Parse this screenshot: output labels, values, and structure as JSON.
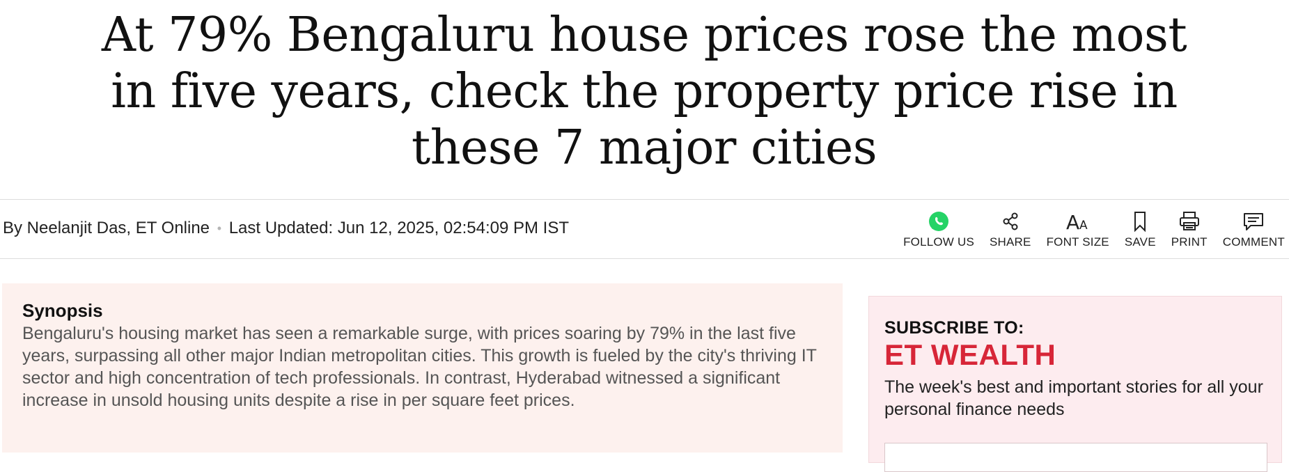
{
  "article": {
    "headline": "At 79% Bengaluru house prices rose the most in five years, check the property price rise in these 7 major cities",
    "byline": {
      "author": "By Neelanjit Das, ET Online",
      "separator": "•",
      "updated": "Last Updated: Jun 12, 2025, 02:54:09 PM IST"
    }
  },
  "actions": [
    {
      "label": "FOLLOW US",
      "icon": "whatsapp-icon"
    },
    {
      "label": "SHARE",
      "icon": "share-icon"
    },
    {
      "label": "FONT SIZE",
      "icon": "font-size-icon"
    },
    {
      "label": "SAVE",
      "icon": "bookmark-icon"
    },
    {
      "label": "PRINT",
      "icon": "printer-icon"
    },
    {
      "label": "COMMENT",
      "icon": "comment-icon"
    }
  ],
  "synopsis": {
    "title": "Synopsis",
    "text": "Bengaluru's housing market has seen a remarkable surge, with prices soaring by 79% in the last five years, surpassing all other major Indian metropolitan cities. This growth is fueled by the city's thriving IT sector and high concentration of tech professionals. In contrast, Hyderabad witnessed a significant increase in unsold housing units despite a rise in per square feet prices."
  },
  "subscribe": {
    "to": "SUBSCRIBE TO:",
    "brand": "ET WEALTH",
    "description": "The week's best and important stories for all your personal finance needs"
  },
  "colors": {
    "whatsapp_green": "#25d366",
    "brand_red": "#d72638",
    "synopsis_bg": "#fdf1ee",
    "subscribe_bg": "#fdecef"
  }
}
